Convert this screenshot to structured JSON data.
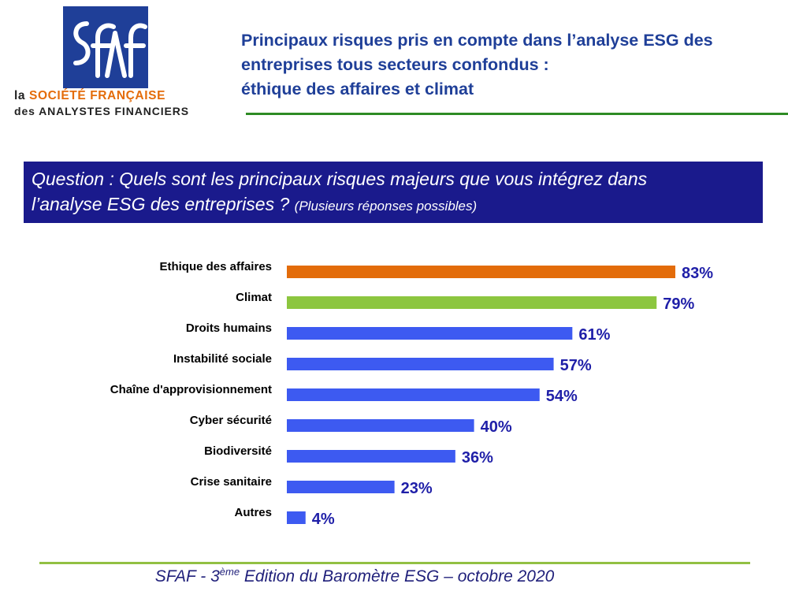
{
  "logo": {
    "wordmark": "SFAF",
    "line1_prefix": "la ",
    "line1_accent": "SOCIÉTÉ FRANÇAISE",
    "line2": "des ANALYSTES FINANCIERS",
    "colors": {
      "box": "#1f3f98",
      "accent": "#e46c0a"
    }
  },
  "header": {
    "title_lines": [
      "Principaux risques pris en compte dans l’analyse ESG des",
      "entreprises tous secteurs confondus :",
      "éthique des affaires et climat"
    ],
    "title_color": "#1f3f98",
    "rule_color": "#2e8b23"
  },
  "question": {
    "line1": "Question : Quels sont les principaux risques majeurs que vous intégrez dans",
    "line2": "l’analyse ESG des entreprises ? ",
    "note": "(Plusieurs réponses possibles)",
    "background": "#1a1a8c"
  },
  "chart_data": {
    "type": "bar",
    "orientation": "horizontal",
    "title": "",
    "xlabel": "",
    "ylabel": "",
    "xlim": [
      0,
      100
    ],
    "grid": false,
    "legend": "none",
    "categories": [
      "Ethique des affaires",
      "Climat",
      "Droits humains",
      "Instabilité sociale",
      "Chaîne d'approvisionnement",
      "Cyber sécurité",
      "Biodiversité",
      "Crise sanitaire",
      "Autres"
    ],
    "values": [
      83,
      79,
      61,
      57,
      54,
      40,
      36,
      23,
      4
    ],
    "value_labels": [
      "83%",
      "79%",
      "61%",
      "57%",
      "54%",
      "40%",
      "36%",
      "23%",
      "4%"
    ],
    "colors": [
      "#e36c0a",
      "#8cc63f",
      "#3d5af1",
      "#3d5af1",
      "#3d5af1",
      "#3d5af1",
      "#3d5af1",
      "#3d5af1",
      "#3d5af1"
    ],
    "label_color": "#1f1fa8"
  },
  "footer": {
    "prefix": "SFAF - 3",
    "superscript": "ème",
    "suffix": " Edition du Baromètre ESG – octobre 2020",
    "rule_color": "#92c043"
  }
}
